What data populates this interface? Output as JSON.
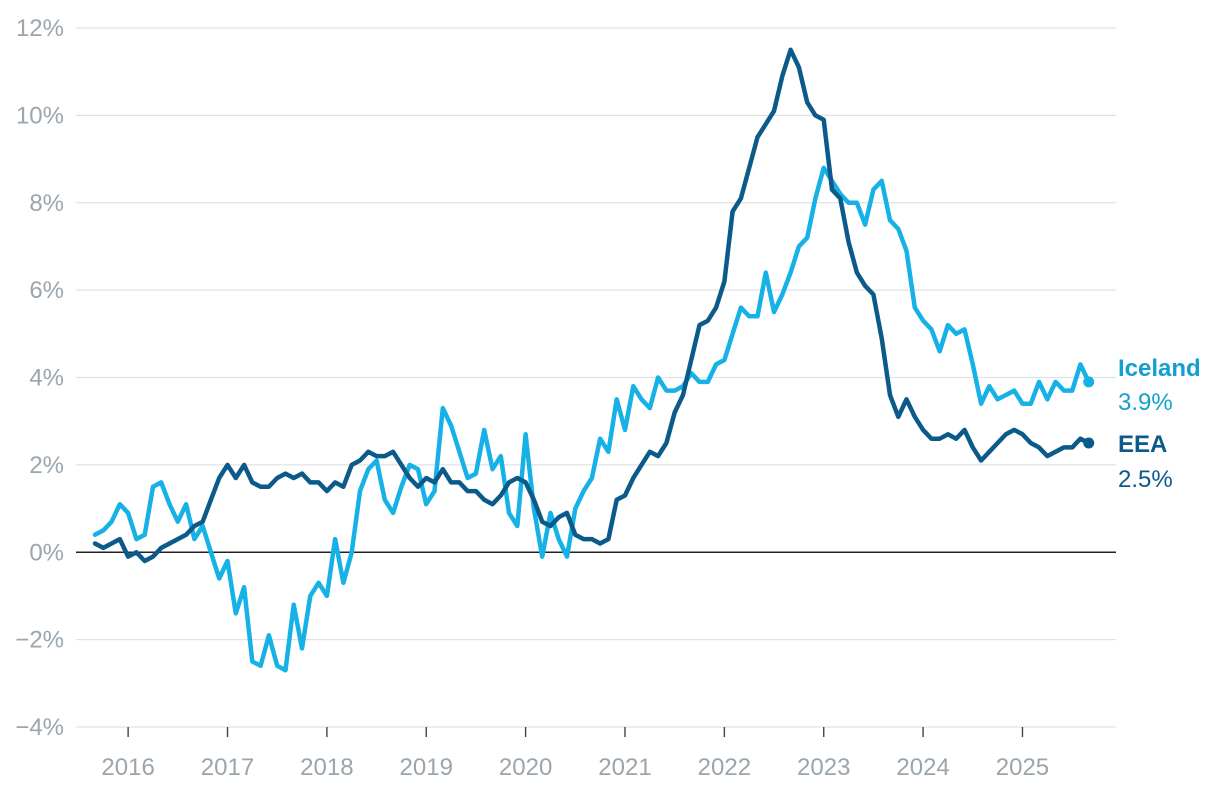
{
  "chart_data": {
    "type": "line",
    "title": "",
    "xlabel": "",
    "ylabel": "",
    "ylim": [
      -4,
      12
    ],
    "xlim": [
      "2015-09",
      "2025-10"
    ],
    "grid": true,
    "y_ticks": [
      -4,
      -2,
      0,
      2,
      4,
      6,
      8,
      10,
      12
    ],
    "y_tick_labels": [
      "−4%",
      "−2%",
      "0%",
      "2%",
      "4%",
      "6%",
      "8%",
      "10%",
      "12%"
    ],
    "x_tick_labels": [
      "2016",
      "2017",
      "2018",
      "2019",
      "2020",
      "2021",
      "2022",
      "2023",
      "2024",
      "2025"
    ],
    "series": [
      {
        "name": "Iceland",
        "end_label": "3.9%",
        "color": "#16b1e6",
        "label_color": "#139fd0",
        "x_start": "2015-09",
        "values": [
          0.4,
          0.5,
          0.7,
          1.1,
          0.9,
          0.3,
          0.4,
          1.5,
          1.6,
          1.1,
          0.7,
          1.1,
          0.3,
          0.6,
          0.0,
          -0.6,
          -0.2,
          -1.4,
          -0.8,
          -2.5,
          -2.6,
          -1.9,
          -2.6,
          -2.7,
          -1.2,
          -2.2,
          -1.0,
          -0.7,
          -1.0,
          0.3,
          -0.7,
          0.0,
          1.4,
          1.9,
          2.1,
          1.2,
          0.9,
          1.5,
          2.0,
          1.9,
          1.1,
          1.4,
          3.3,
          2.9,
          2.3,
          1.7,
          1.8,
          2.8,
          1.9,
          2.2,
          0.9,
          0.6,
          2.7,
          1.0,
          -0.1,
          0.9,
          0.3,
          -0.1,
          1.0,
          1.4,
          1.7,
          2.6,
          2.3,
          3.5,
          2.8,
          3.8,
          3.5,
          3.3,
          4.0,
          3.7,
          3.7,
          3.8,
          4.1,
          3.9,
          3.9,
          4.3,
          4.4,
          5.0,
          5.6,
          5.4,
          5.4,
          6.4,
          5.5,
          5.9,
          6.4,
          7.0,
          7.2,
          8.1,
          8.8,
          8.5,
          8.2,
          8.0,
          8.0,
          7.5,
          8.3,
          8.5,
          7.6,
          7.4,
          6.9,
          5.6,
          5.3,
          5.1,
          4.6,
          5.2,
          5.0,
          5.1,
          4.3,
          3.4,
          3.8,
          3.5,
          3.6,
          3.7,
          3.4,
          3.4,
          3.9,
          3.5,
          3.9,
          3.7,
          3.7,
          4.3,
          3.9
        ]
      },
      {
        "name": "EEA",
        "end_label": "2.5%",
        "color": "#0b5a8a",
        "label_color": "#0b5a8a",
        "x_start": "2015-09",
        "values": [
          0.2,
          0.1,
          0.2,
          0.3,
          -0.1,
          0.0,
          -0.2,
          -0.1,
          0.1,
          0.2,
          0.3,
          0.4,
          0.6,
          0.7,
          1.2,
          1.7,
          2.0,
          1.7,
          2.0,
          1.6,
          1.5,
          1.5,
          1.7,
          1.8,
          1.7,
          1.8,
          1.6,
          1.6,
          1.4,
          1.6,
          1.5,
          2.0,
          2.1,
          2.3,
          2.2,
          2.2,
          2.3,
          2.0,
          1.7,
          1.5,
          1.7,
          1.6,
          1.9,
          1.6,
          1.6,
          1.4,
          1.4,
          1.2,
          1.1,
          1.3,
          1.6,
          1.7,
          1.6,
          1.2,
          0.7,
          0.6,
          0.8,
          0.9,
          0.4,
          0.3,
          0.3,
          0.2,
          0.3,
          1.2,
          1.3,
          1.7,
          2.0,
          2.3,
          2.2,
          2.5,
          3.2,
          3.6,
          4.4,
          5.2,
          5.3,
          5.6,
          6.2,
          7.8,
          8.1,
          8.8,
          9.5,
          9.8,
          10.1,
          10.9,
          11.5,
          11.1,
          10.3,
          10.0,
          9.9,
          8.3,
          8.1,
          7.1,
          6.4,
          6.1,
          5.9,
          4.9,
          3.6,
          3.1,
          3.5,
          3.1,
          2.8,
          2.6,
          2.6,
          2.7,
          2.6,
          2.8,
          2.4,
          2.1,
          2.3,
          2.5,
          2.7,
          2.8,
          2.7,
          2.5,
          2.4,
          2.2,
          2.3,
          2.4,
          2.4,
          2.6,
          2.5
        ]
      }
    ]
  }
}
